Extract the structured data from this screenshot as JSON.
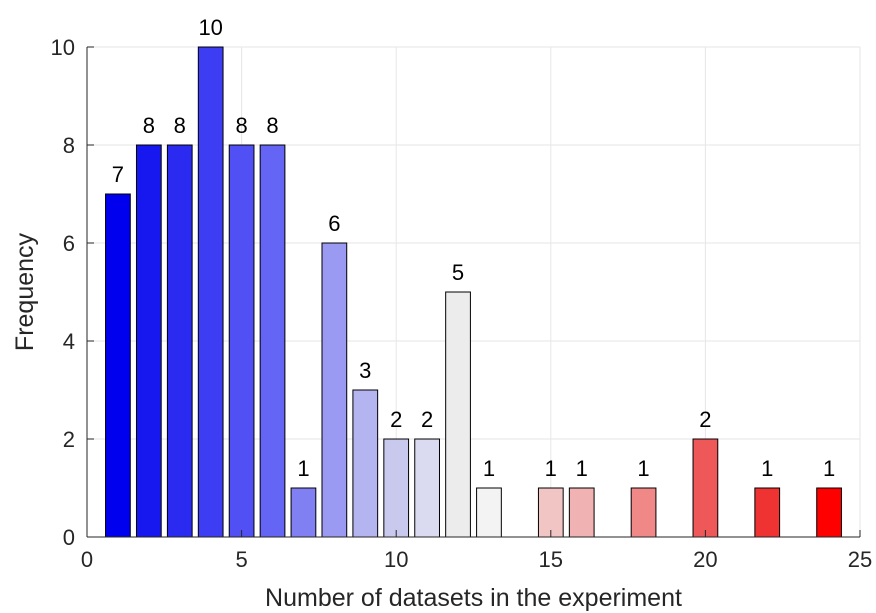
{
  "chart_data": {
    "type": "bar",
    "title": "",
    "xlabel": "Number of datasets in the experiment",
    "ylabel": "Frequency",
    "xlim": [
      0,
      25
    ],
    "ylim": [
      0,
      10
    ],
    "xticks": [
      0,
      5,
      10,
      15,
      20,
      25
    ],
    "yticks": [
      0,
      2,
      4,
      6,
      8,
      10
    ],
    "grid": true,
    "bars": [
      {
        "x": 1,
        "value": 7,
        "label": "7",
        "color": "#0000ee"
      },
      {
        "x": 2,
        "value": 8,
        "label": "8",
        "color": "#1717f0"
      },
      {
        "x": 3,
        "value": 8,
        "label": "8",
        "color": "#2a2af1"
      },
      {
        "x": 4,
        "value": 10,
        "label": "10",
        "color": "#3d3df3"
      },
      {
        "x": 5,
        "value": 8,
        "label": "8",
        "color": "#5050f4"
      },
      {
        "x": 6,
        "value": 8,
        "label": "8",
        "color": "#6464f5"
      },
      {
        "x": 7,
        "value": 1,
        "label": "1",
        "color": "#8080f3"
      },
      {
        "x": 8,
        "value": 6,
        "label": "6",
        "color": "#9a9af3"
      },
      {
        "x": 9,
        "value": 3,
        "label": "3",
        "color": "#b4b4f1"
      },
      {
        "x": 10,
        "value": 2,
        "label": "2",
        "color": "#c9c9ee"
      },
      {
        "x": 11,
        "value": 2,
        "label": "2",
        "color": "#dadaf0"
      },
      {
        "x": 12,
        "value": 5,
        "label": "5",
        "color": "#ececec"
      },
      {
        "x": 13,
        "value": 1,
        "label": "1",
        "color": "#f3f3f3"
      },
      {
        "x": 15,
        "value": 1,
        "label": "1",
        "color": "#f2c5c5"
      },
      {
        "x": 16,
        "value": 1,
        "label": "1",
        "color": "#f0b2b2"
      },
      {
        "x": 18,
        "value": 1,
        "label": "1",
        "color": "#f08888"
      },
      {
        "x": 20,
        "value": 2,
        "label": "2",
        "color": "#ef5858"
      },
      {
        "x": 22,
        "value": 1,
        "label": "1",
        "color": "#ef3232"
      },
      {
        "x": 24,
        "value": 1,
        "label": "1",
        "color": "#ff0000"
      }
    ]
  }
}
